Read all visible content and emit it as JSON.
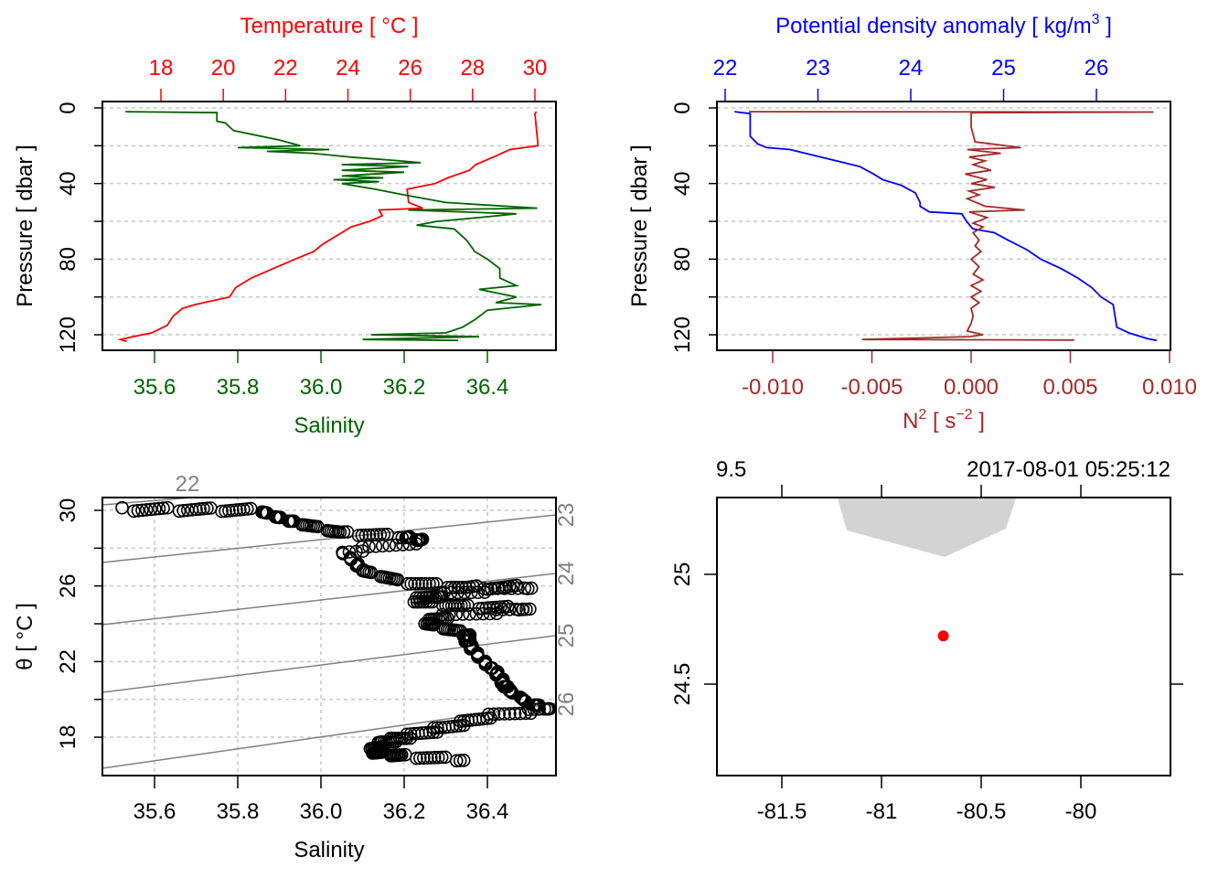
{
  "chart_data": [
    {
      "type": "line",
      "panel": "profile-temperature-salinity",
      "title": "",
      "ylabel": "Pressure [ dbar ]",
      "ylim": [
        125,
        0
      ],
      "yticks": [
        "0",
        "40",
        "80",
        "120"
      ],
      "top_axis": {
        "label": "Temperature [ °C ]",
        "color": "#ff0000",
        "ticks": [
          "18",
          "20",
          "22",
          "24",
          "26",
          "28",
          "30"
        ]
      },
      "bottom_axis": {
        "label": "Salinity",
        "color": "#006400",
        "ticks": [
          "35.6",
          "35.8",
          "36.0",
          "36.2",
          "36.4"
        ]
      },
      "grid": true,
      "series": [
        {
          "name": "Temperature",
          "color": "#ff0000",
          "points": [
            [
              2,
              30.05
            ],
            [
              3,
              30.0
            ],
            [
              20,
              30.1
            ],
            [
              22,
              29.2
            ],
            [
              25,
              28.8
            ],
            [
              30,
              28.1
            ],
            [
              33,
              27.9
            ],
            [
              37,
              27.2
            ],
            [
              40,
              26.8
            ],
            [
              43,
              25.9
            ],
            [
              50,
              25.95
            ],
            [
              53,
              26.4
            ],
            [
              54,
              25.0
            ],
            [
              57,
              25.1
            ],
            [
              60,
              24.7
            ],
            [
              63,
              24.1
            ],
            [
              68,
              23.6
            ],
            [
              72,
              23.2
            ],
            [
              76,
              22.9
            ],
            [
              80,
              22.3
            ],
            [
              85,
              21.6
            ],
            [
              90,
              20.9
            ],
            [
              95,
              20.4
            ],
            [
              100,
              20.2
            ],
            [
              104,
              19.1
            ],
            [
              106,
              18.7
            ],
            [
              110,
              18.4
            ],
            [
              115,
              18.2
            ],
            [
              119,
              17.7
            ],
            [
              121,
              17.1
            ],
            [
              122.5,
              16.7
            ],
            [
              123.5,
              16.9
            ]
          ]
        },
        {
          "name": "Salinity",
          "color": "#006400",
          "points": [
            [
              2,
              35.53
            ],
            [
              2.5,
              35.75
            ],
            [
              7,
              35.75
            ],
            [
              8,
              35.77
            ],
            [
              12,
              35.79
            ],
            [
              17,
              35.9
            ],
            [
              20,
              35.95
            ],
            [
              21,
              35.8
            ],
            [
              22,
              36.02
            ],
            [
              23,
              35.87
            ],
            [
              24,
              35.98
            ],
            [
              26,
              36.07
            ],
            [
              28,
              36.19
            ],
            [
              29,
              36.24
            ],
            [
              30,
              36.05
            ],
            [
              31,
              36.21
            ],
            [
              33,
              36.05
            ],
            [
              34,
              36.2
            ],
            [
              36,
              36.05
            ],
            [
              37,
              36.15
            ],
            [
              38,
              36.03
            ],
            [
              39,
              36.14
            ],
            [
              40,
              36.05
            ],
            [
              43,
              36.13
            ],
            [
              46,
              36.2
            ],
            [
              50,
              36.3
            ],
            [
              53,
              36.52
            ],
            [
              54,
              36.21
            ],
            [
              56,
              36.47
            ],
            [
              58,
              36.38
            ],
            [
              60,
              36.28
            ],
            [
              62,
              36.23
            ],
            [
              64,
              36.32
            ],
            [
              70,
              36.35
            ],
            [
              76,
              36.37
            ],
            [
              80,
              36.4
            ],
            [
              85,
              36.43
            ],
            [
              90,
              36.43
            ],
            [
              94,
              36.47
            ],
            [
              96,
              36.38
            ],
            [
              100,
              36.47
            ],
            [
              103,
              36.42
            ],
            [
              104,
              36.53
            ],
            [
              107,
              36.4
            ],
            [
              112,
              36.37
            ],
            [
              116,
              36.34
            ],
            [
              119,
              36.3
            ],
            [
              120,
              36.12
            ],
            [
              121,
              36.38
            ],
            [
              122.5,
              36.1
            ],
            [
              123,
              36.33
            ]
          ]
        }
      ]
    },
    {
      "type": "line",
      "panel": "profile-density-n2",
      "ylabel": "Pressure [ dbar ]",
      "ylim": [
        125,
        0
      ],
      "yticks": [
        "0",
        "40",
        "80",
        "120"
      ],
      "top_axis": {
        "label_main": "Potential density anomaly [ kg/m",
        "label_sup": "3",
        "label_end": " ]",
        "color": "#0000ff",
        "ticks": [
          "22",
          "23",
          "24",
          "25",
          "26"
        ]
      },
      "bottom_axis": {
        "label_main": "N",
        "label_sup": "2",
        "label_mid": " [ s",
        "label_sup2": "−2",
        "label_end": " ]",
        "color": "#a52a2a",
        "ticks": [
          "-0.010",
          "-0.005",
          "0.000",
          "0.005",
          "0.010"
        ]
      },
      "grid": true,
      "series": [
        {
          "name": "Potential density anomaly",
          "color": "#0000ff",
          "points": [
            [
              2,
              22.1
            ],
            [
              3,
              22.27
            ],
            [
              15,
              22.27
            ],
            [
              19,
              22.35
            ],
            [
              21,
              22.45
            ],
            [
              22,
              22.7
            ],
            [
              25,
              22.95
            ],
            [
              28,
              23.2
            ],
            [
              31,
              23.45
            ],
            [
              35,
              23.6
            ],
            [
              38,
              23.7
            ],
            [
              41,
              23.9
            ],
            [
              45,
              24.05
            ],
            [
              50,
              24.1
            ],
            [
              52,
              24.1
            ],
            [
              55,
              24.2
            ],
            [
              56,
              24.55
            ],
            [
              60,
              24.6
            ],
            [
              64,
              24.67
            ],
            [
              66,
              24.9
            ],
            [
              70,
              25.05
            ],
            [
              75,
              25.25
            ],
            [
              80,
              25.4
            ],
            [
              85,
              25.62
            ],
            [
              90,
              25.8
            ],
            [
              95,
              25.95
            ],
            [
              100,
              26.05
            ],
            [
              104,
              26.18
            ],
            [
              110,
              26.2
            ],
            [
              116,
              26.22
            ],
            [
              119,
              26.35
            ],
            [
              122,
              26.55
            ],
            [
              123,
              26.65
            ]
          ]
        },
        {
          "name": "N2",
          "color": "#a52a2a",
          "points": [
            [
              2,
              -0.0112
            ],
            [
              2.2,
              0.0092
            ],
            [
              2.6,
              0.0
            ],
            [
              10,
              0.0
            ],
            [
              18,
              0.0002
            ],
            [
              21,
              0.0025
            ],
            [
              22,
              -0.0002
            ],
            [
              24,
              0.0015
            ],
            [
              26,
              -0.0001
            ],
            [
              28,
              0.0007
            ],
            [
              30,
              0.0001
            ],
            [
              33,
              0.001
            ],
            [
              35,
              -0.0003
            ],
            [
              38,
              0.0008
            ],
            [
              40,
              0.0
            ],
            [
              42,
              0.0012
            ],
            [
              44,
              -0.0001
            ],
            [
              46,
              0.0004
            ],
            [
              48,
              -0.0002
            ],
            [
              52,
              0.0007
            ],
            [
              54,
              0.0027
            ],
            [
              55,
              -0.0001
            ],
            [
              58,
              0.0008
            ],
            [
              61,
              0.0001
            ],
            [
              63,
              0.0006
            ],
            [
              66,
              0.0001
            ],
            [
              70,
              0.0004
            ],
            [
              73,
              0.0002
            ],
            [
              76,
              0.0005
            ],
            [
              80,
              0.0
            ],
            [
              84,
              0.0004
            ],
            [
              88,
              0.0001
            ],
            [
              91,
              0.0006
            ],
            [
              94,
              0.0
            ],
            [
              97,
              0.0005
            ],
            [
              100,
              0.0
            ],
            [
              103,
              0.0004
            ],
            [
              106,
              0.0
            ],
            [
              110,
              0.0001
            ],
            [
              114,
              0.0
            ],
            [
              118,
              -0.0002
            ],
            [
              120,
              0.0006
            ],
            [
              121,
              -0.0001
            ],
            [
              122.5,
              -0.0055
            ],
            [
              122.8,
              0.0052
            ]
          ]
        }
      ]
    },
    {
      "type": "scatter",
      "panel": "ts-diagram",
      "xlabel": "Salinity",
      "ylabel": "θ [ °C ]",
      "xticks": [
        "35.6",
        "35.8",
        "36.0",
        "36.2",
        "36.4"
      ],
      "yticks": [
        "18",
        "22",
        "26",
        "30"
      ],
      "grid": true,
      "isopycnal_labels": [
        "22",
        "23",
        "24",
        "25",
        "26"
      ],
      "isopycnal_color": "#808080",
      "points": [
        [
          35.53,
          30.05
        ],
        [
          35.7,
          30.05
        ],
        [
          35.85,
          30.0
        ],
        [
          35.9,
          29.6
        ],
        [
          35.95,
          29.3
        ],
        [
          36.05,
          28.8
        ],
        [
          36.2,
          28.6
        ],
        [
          36.25,
          28.4
        ],
        [
          36.05,
          27.8
        ],
        [
          36.08,
          27.3
        ],
        [
          36.1,
          26.8
        ],
        [
          36.2,
          26.2
        ],
        [
          36.35,
          25.9
        ],
        [
          36.5,
          25.95
        ],
        [
          36.3,
          25.6
        ],
        [
          36.22,
          25.2
        ],
        [
          36.35,
          24.9
        ],
        [
          36.5,
          24.8
        ],
        [
          36.3,
          24.4
        ],
        [
          36.25,
          24.0
        ],
        [
          36.35,
          23.5
        ],
        [
          36.35,
          23.1
        ],
        [
          36.37,
          22.5
        ],
        [
          36.4,
          21.8
        ],
        [
          36.42,
          21.5
        ],
        [
          36.44,
          20.8
        ],
        [
          36.45,
          20.5
        ],
        [
          36.5,
          19.8
        ],
        [
          36.55,
          19.5
        ],
        [
          36.4,
          19.1
        ],
        [
          36.3,
          18.5
        ],
        [
          36.2,
          18.0
        ],
        [
          36.15,
          17.7
        ],
        [
          36.12,
          17.2
        ],
        [
          36.2,
          17.0
        ],
        [
          36.35,
          16.8
        ]
      ]
    },
    {
      "type": "scatter",
      "panel": "station-map",
      "xticks": [
        "-81.5",
        "-81",
        "-80.5",
        "-80"
      ],
      "yticks": [
        "24.5",
        "25"
      ],
      "top_left_text": "9.5",
      "top_right_text": "2017-08-01 05:25:12",
      "station": {
        "lon": -80.69,
        "lat": 24.72,
        "color": "#ff0000"
      },
      "land_color": "#d3d3d3"
    }
  ]
}
